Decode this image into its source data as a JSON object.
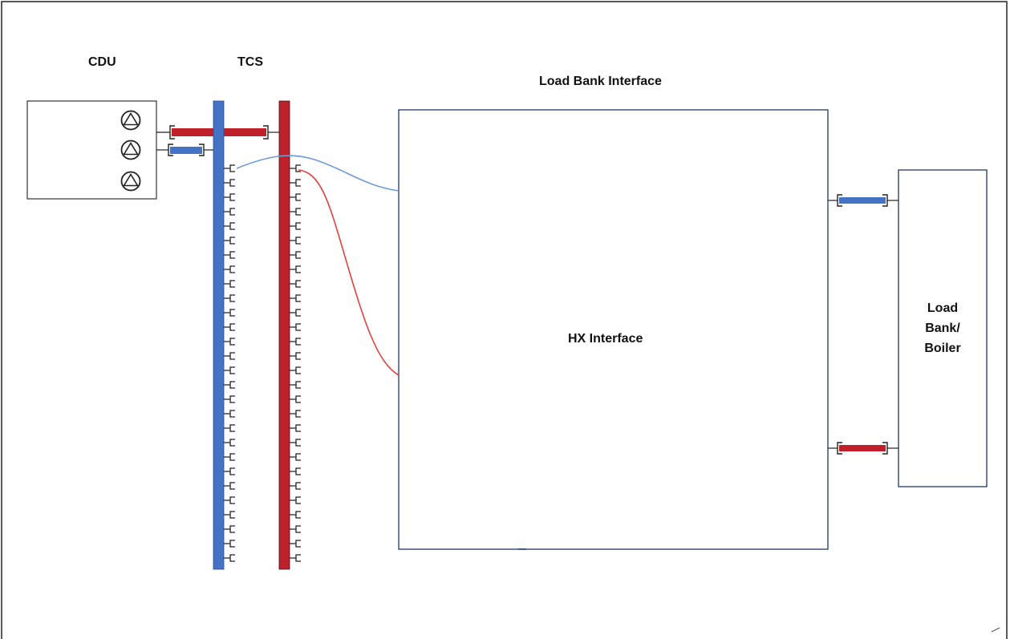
{
  "labels": {
    "cdu": "CDU",
    "tcs": "TCS",
    "load_bank_interface": "Load Bank Interface",
    "hx_interface": "HX Interface",
    "load_bank_line1": "Load",
    "load_bank_line2": "Bank/",
    "load_bank_line3": "Boiler"
  },
  "colors": {
    "supply_blue": "#4472c4",
    "return_red": "#c0202a",
    "pipe_blue_light": "#6e9bd8",
    "pipe_red_light": "#e04040",
    "box_stroke": "#1f3864",
    "frame_stroke": "#222222"
  },
  "icons": {
    "pump": "pump-icon",
    "connector": "quick-connect-icon"
  }
}
